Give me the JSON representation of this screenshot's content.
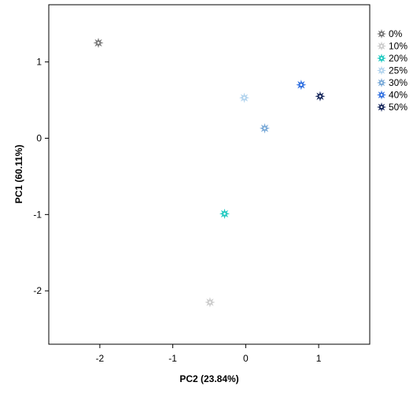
{
  "chart_data": {
    "type": "scatter",
    "xlabel": "PC2 (23.84%)",
    "ylabel": "PC1 (60.11%)",
    "xlim": [
      -2.7,
      1.7
    ],
    "ylim": [
      -2.7,
      1.75
    ],
    "xticks": [
      -2,
      -1,
      0,
      1
    ],
    "yticks": [
      -2,
      -1,
      0,
      1
    ],
    "grid": false,
    "legend_position": "right",
    "series": [
      {
        "name": "0%",
        "color": "#777777",
        "x": -2.02,
        "y": 1.25
      },
      {
        "name": "10%",
        "color": "#cccccc",
        "x": -0.49,
        "y": -2.15
      },
      {
        "name": "20%",
        "color": "#1fc9c0",
        "x": -0.29,
        "y": -0.99
      },
      {
        "name": "25%",
        "color": "#b3d4ee",
        "x": -0.02,
        "y": 0.53
      },
      {
        "name": "30%",
        "color": "#7aaad8",
        "x": 0.26,
        "y": 0.13
      },
      {
        "name": "40%",
        "color": "#2f6fe0",
        "x": 0.76,
        "y": 0.7
      },
      {
        "name": "50%",
        "color": "#1a2a5e",
        "x": 1.02,
        "y": 0.55
      }
    ]
  }
}
